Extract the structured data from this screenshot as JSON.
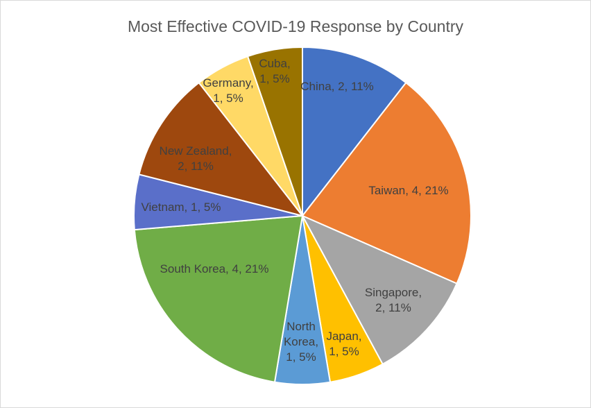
{
  "chart_data": {
    "type": "pie",
    "title": "Most Effective COVID-19 Response by Country",
    "slices": [
      {
        "name": "China",
        "value": 2,
        "percent": "11%",
        "color": "#4472C4",
        "label_lines": [
          "China, 2, 11%"
        ]
      },
      {
        "name": "Taiwan",
        "value": 4,
        "percent": "21%",
        "color": "#ED7D31",
        "label_lines": [
          "Taiwan, 4, 21%"
        ]
      },
      {
        "name": "Singapore",
        "value": 2,
        "percent": "11%",
        "color": "#A5A5A5",
        "label_lines": [
          "Singapore,",
          "2, 11%"
        ]
      },
      {
        "name": "Japan",
        "value": 1,
        "percent": "5%",
        "color": "#FFC000",
        "label_lines": [
          "Japan,",
          "1, 5%"
        ]
      },
      {
        "name": "North Korea",
        "value": 1,
        "percent": "5%",
        "color": "#5B9BD5",
        "label_lines": [
          "North",
          "Korea,",
          "1, 5%"
        ]
      },
      {
        "name": "South Korea",
        "value": 4,
        "percent": "21%",
        "color": "#70AD47",
        "label_lines": [
          "South Korea, 4, 21%"
        ]
      },
      {
        "name": "Vietnam",
        "value": 1,
        "percent": "5%",
        "color": "#5A6FC9",
        "label_lines": [
          "Vietnam, 1, 5%"
        ]
      },
      {
        "name": "New Zealand",
        "value": 2,
        "percent": "11%",
        "color": "#9E480E",
        "label_lines": [
          "New Zealand,",
          "2, 11%"
        ]
      },
      {
        "name": "Germany",
        "value": 1,
        "percent": "5%",
        "color": "#FFD966",
        "label_lines": [
          "Germany,",
          "1, 5%"
        ]
      },
      {
        "name": "Cuba",
        "value": 1,
        "percent": "5%",
        "color": "#997300",
        "label_lines": [
          "Cuba,",
          "1, 5%"
        ]
      }
    ]
  }
}
